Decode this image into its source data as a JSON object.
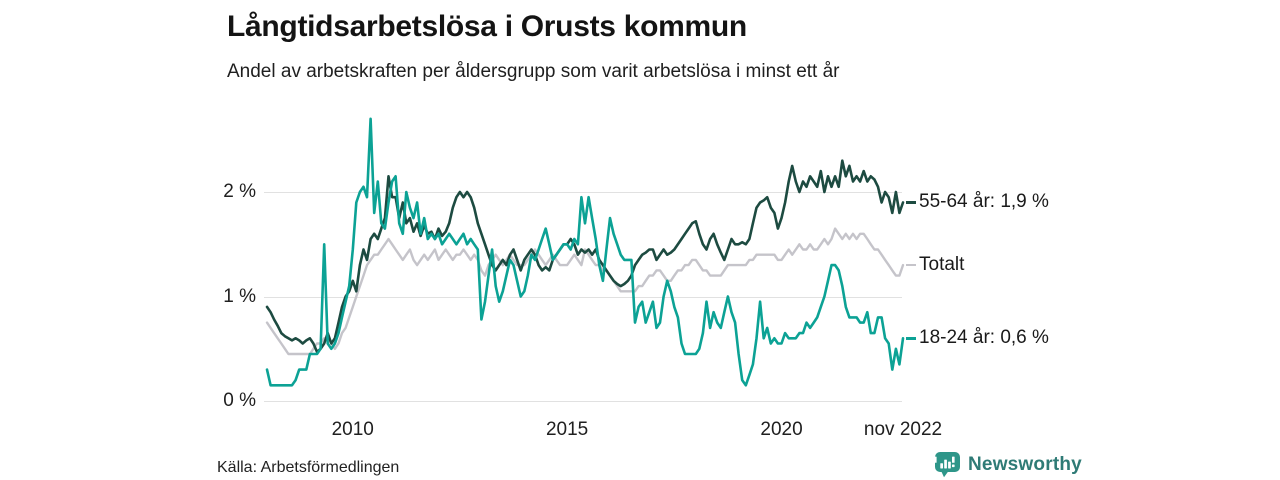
{
  "header": {
    "title": "Långtidsarbetslösa i Orusts kommun",
    "subtitle": "Andel av arbetskraften per åldersgrupp som varit arbetslösa i minst ett år"
  },
  "footer": {
    "source": "Källa: Arbetsförmedlingen",
    "brand": "Newsworthy",
    "brand_text_color": "#2f7b76",
    "brand_icon_color": "#2e9689"
  },
  "colors": {
    "background": "#ffffff",
    "gridline": "#e1e1e1",
    "text_dark": "#141414",
    "axis_text": "#202020"
  },
  "chart_data": {
    "type": "line",
    "title": "Långtidsarbetslösa i Orusts kommun",
    "subtitle": "Andel av arbetskraften per åldersgrupp som varit arbetslösa i minst ett år",
    "unit": "%",
    "frequency": "monthly",
    "x_start": "2008-01",
    "x_end": "2022-11",
    "ylim": [
      0,
      2.8
    ],
    "grid": "horizontal",
    "legend_position": "right-annotations",
    "y_ticks": [
      {
        "label": "0 %",
        "value": 0
      },
      {
        "label": "1 %",
        "value": 1
      },
      {
        "label": "2 %",
        "value": 2
      }
    ],
    "x_ticks": [
      {
        "label": "2010",
        "month_index": 24
      },
      {
        "label": "2015",
        "month_index": 84
      },
      {
        "label": "2020",
        "month_index": 144
      },
      {
        "label": "nov 2022",
        "month_index": 178
      }
    ],
    "series": [
      {
        "name": "55-64 år",
        "label": "55-64 år: 1,9 %",
        "last_value": 1.9,
        "color": "#1d4b41",
        "values": [
          0.9,
          0.85,
          0.78,
          0.72,
          0.65,
          0.62,
          0.6,
          0.58,
          0.6,
          0.58,
          0.55,
          0.58,
          0.6,
          0.55,
          0.47,
          0.5,
          0.55,
          0.65,
          0.55,
          0.6,
          0.75,
          0.9,
          1.0,
          1.05,
          1.15,
          1.05,
          1.3,
          1.45,
          1.35,
          1.55,
          1.6,
          1.55,
          1.65,
          1.75,
          2.15,
          1.95,
          1.95,
          1.75,
          1.9,
          1.7,
          1.75,
          1.62,
          1.7,
          1.58,
          1.68,
          1.6,
          1.62,
          1.55,
          1.65,
          1.58,
          1.62,
          1.7,
          1.85,
          1.95,
          2.0,
          1.95,
          2.0,
          1.95,
          1.85,
          1.7,
          1.6,
          1.5,
          1.4,
          1.3,
          1.25,
          1.3,
          1.35,
          1.3,
          1.4,
          1.45,
          1.35,
          1.25,
          1.35,
          1.4,
          1.45,
          1.4,
          1.3,
          1.25,
          1.28,
          1.25,
          1.35,
          1.4,
          1.45,
          1.5,
          1.5,
          1.55,
          1.5,
          1.4,
          1.45,
          1.42,
          1.45,
          1.4,
          1.45,
          1.35,
          1.3,
          1.25,
          1.2,
          1.15,
          1.12,
          1.1,
          1.12,
          1.15,
          1.2,
          1.3,
          1.35,
          1.4,
          1.42,
          1.45,
          1.45,
          1.35,
          1.4,
          1.45,
          1.4,
          1.42,
          1.45,
          1.5,
          1.55,
          1.6,
          1.65,
          1.7,
          1.72,
          1.6,
          1.5,
          1.45,
          1.55,
          1.6,
          1.5,
          1.42,
          1.35,
          1.45,
          1.55,
          1.5,
          1.5,
          1.52,
          1.5,
          1.55,
          1.7,
          1.85,
          1.9,
          1.92,
          1.95,
          1.85,
          1.8,
          1.65,
          1.75,
          1.9,
          2.1,
          2.25,
          2.1,
          2.0,
          2.1,
          2.05,
          2.15,
          2.1,
          2.05,
          2.2,
          2.0,
          2.15,
          2.05,
          2.15,
          2.05,
          2.3,
          2.15,
          2.25,
          2.1,
          2.15,
          2.1,
          2.2,
          2.1,
          2.15,
          2.12,
          2.05,
          1.9,
          2.0,
          1.95,
          1.8,
          2.0,
          1.8,
          1.9
        ]
      },
      {
        "name": "Totalt",
        "label": "Totalt",
        "last_value": 1.3,
        "color": "#c5c4ca",
        "values": [
          0.75,
          0.7,
          0.65,
          0.6,
          0.55,
          0.5,
          0.45,
          0.45,
          0.45,
          0.45,
          0.45,
          0.45,
          0.45,
          0.5,
          0.55,
          0.55,
          0.6,
          0.6,
          0.55,
          0.5,
          0.55,
          0.65,
          0.7,
          0.8,
          0.9,
          1.0,
          1.1,
          1.2,
          1.3,
          1.35,
          1.4,
          1.4,
          1.45,
          1.5,
          1.55,
          1.5,
          1.45,
          1.4,
          1.35,
          1.4,
          1.45,
          1.35,
          1.3,
          1.35,
          1.4,
          1.35,
          1.4,
          1.45,
          1.35,
          1.4,
          1.45,
          1.4,
          1.35,
          1.4,
          1.4,
          1.45,
          1.4,
          1.35,
          1.4,
          1.35,
          1.25,
          1.2,
          1.3,
          1.35,
          1.4,
          1.35,
          1.3,
          1.35,
          1.4,
          1.35,
          1.3,
          1.3,
          1.3,
          1.35,
          1.4,
          1.45,
          1.4,
          1.35,
          1.3,
          1.35,
          1.4,
          1.35,
          1.3,
          1.3,
          1.3,
          1.35,
          1.4,
          1.35,
          1.3,
          1.45,
          1.4,
          1.35,
          1.3,
          1.3,
          1.25,
          1.25,
          1.2,
          1.15,
          1.1,
          1.05,
          1.05,
          1.05,
          1.05,
          1.05,
          1.1,
          1.1,
          1.15,
          1.2,
          1.2,
          1.25,
          1.25,
          1.2,
          1.15,
          1.15,
          1.2,
          1.25,
          1.25,
          1.3,
          1.3,
          1.35,
          1.35,
          1.3,
          1.25,
          1.25,
          1.2,
          1.2,
          1.2,
          1.2,
          1.25,
          1.3,
          1.3,
          1.3,
          1.3,
          1.3,
          1.3,
          1.35,
          1.35,
          1.4,
          1.4,
          1.4,
          1.4,
          1.4,
          1.4,
          1.35,
          1.35,
          1.4,
          1.45,
          1.4,
          1.45,
          1.5,
          1.45,
          1.45,
          1.5,
          1.45,
          1.45,
          1.5,
          1.55,
          1.5,
          1.55,
          1.65,
          1.6,
          1.55,
          1.6,
          1.55,
          1.6,
          1.55,
          1.6,
          1.6,
          1.55,
          1.5,
          1.45,
          1.45,
          1.4,
          1.35,
          1.3,
          1.25,
          1.2,
          1.2,
          1.3
        ]
      },
      {
        "name": "18-24 år",
        "label": "18-24 år: 0,6 %",
        "last_value": 0.6,
        "color": "#0ca295",
        "values": [
          0.3,
          0.15,
          0.15,
          0.15,
          0.15,
          0.15,
          0.15,
          0.15,
          0.2,
          0.3,
          0.3,
          0.3,
          0.45,
          0.45,
          0.45,
          0.5,
          1.5,
          0.55,
          0.5,
          0.55,
          0.65,
          0.8,
          0.95,
          1.1,
          1.45,
          1.9,
          2.0,
          2.05,
          1.95,
          2.7,
          1.8,
          2.1,
          1.7,
          1.65,
          1.9,
          2.1,
          2.15,
          1.7,
          1.6,
          2.0,
          1.85,
          1.75,
          1.9,
          1.6,
          1.75,
          1.55,
          1.6,
          1.55,
          1.6,
          1.5,
          1.55,
          1.6,
          1.55,
          1.5,
          1.55,
          1.6,
          1.5,
          1.55,
          1.5,
          1.45,
          0.78,
          0.95,
          1.2,
          1.45,
          1.1,
          0.95,
          1.05,
          1.2,
          1.35,
          1.3,
          1.15,
          1.0,
          1.05,
          1.2,
          1.4,
          1.35,
          1.45,
          1.55,
          1.65,
          1.5,
          1.35,
          1.4,
          1.45,
          1.5,
          1.5,
          1.45,
          1.55,
          1.5,
          1.95,
          1.7,
          1.95,
          1.75,
          1.55,
          1.3,
          1.15,
          1.45,
          1.75,
          1.6,
          1.5,
          1.4,
          1.35,
          1.35,
          1.35,
          0.75,
          0.9,
          0.95,
          0.75,
          0.85,
          0.95,
          0.7,
          0.75,
          1.0,
          1.15,
          1.05,
          0.9,
          0.8,
          0.55,
          0.45,
          0.45,
          0.45,
          0.45,
          0.5,
          0.65,
          0.95,
          0.7,
          0.85,
          0.75,
          0.7,
          0.85,
          1.0,
          0.85,
          0.75,
          0.45,
          0.2,
          0.15,
          0.25,
          0.35,
          0.6,
          0.95,
          0.6,
          0.7,
          0.55,
          0.6,
          0.55,
          0.55,
          0.65,
          0.6,
          0.6,
          0.6,
          0.65,
          0.65,
          0.75,
          0.7,
          0.75,
          0.8,
          0.9,
          1.0,
          1.15,
          1.3,
          1.3,
          1.25,
          1.1,
          0.9,
          0.8,
          0.8,
          0.8,
          0.75,
          0.75,
          0.85,
          0.65,
          0.65,
          0.8,
          0.8,
          0.6,
          0.55,
          0.3,
          0.5,
          0.35,
          0.6
        ]
      }
    ]
  }
}
